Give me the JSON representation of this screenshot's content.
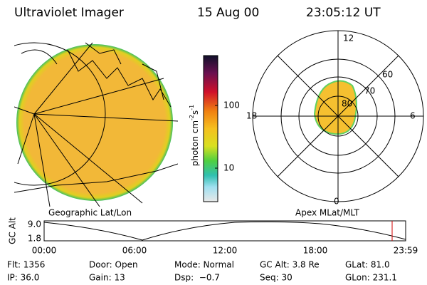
{
  "header": {
    "instrument": "Ultraviolet Imager",
    "date": "15 Aug 00",
    "time": "23:05:12 UT"
  },
  "colorbar": {
    "unit": "photon cm",
    "exp1": "-2",
    "unit2": "s",
    "exp2": "-1",
    "ticks": [
      "100",
      "10"
    ]
  },
  "polar": {
    "mlt_labels": [
      "12",
      "18",
      "6",
      "0"
    ],
    "lat_labels": [
      "60",
      "70",
      "80"
    ]
  },
  "panel_labels": {
    "left": "Geographic Lat/Lon",
    "right": "Apex MLat/MLT"
  },
  "altitude": {
    "ylabel": "GC Alt",
    "yticks": [
      "9.0",
      "1.8"
    ],
    "xticks": [
      "00:00",
      "06:00",
      "12:00",
      "18:00",
      "23:59"
    ]
  },
  "footer": [
    [
      "Flt: 1356",
      "Door: Open",
      "Mode: Normal",
      "GC Alt: 3.8 Re",
      "GLat: 81.0"
    ],
    [
      "IP: 36.0",
      "Gain: 13",
      "Dsp:  −0.7",
      "Seq: 30",
      "GLon: 231.1"
    ]
  ]
}
